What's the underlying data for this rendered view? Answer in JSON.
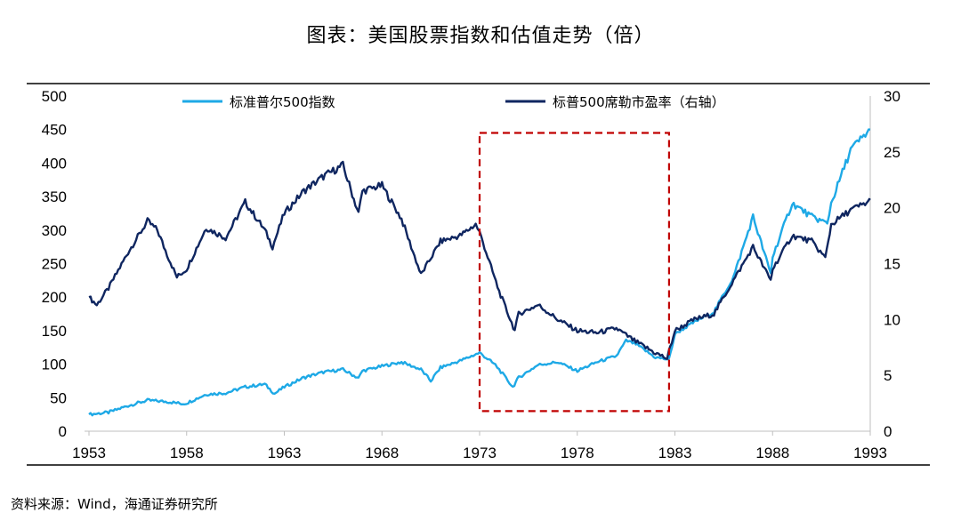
{
  "title": "图表：美国股票指数和估值走势（倍）",
  "source": "资料来源：Wind，海通证券研究所",
  "colors": {
    "sp500": "#1EA9E6",
    "pe": "#0F2660",
    "highlight": "#C00000"
  },
  "chart_data": {
    "type": "line",
    "x_ticks": [
      "1953",
      "1958",
      "1963",
      "1968",
      "1973",
      "1978",
      "1983",
      "1988",
      "1993"
    ],
    "xlim": [
      1953,
      1993
    ],
    "y_left_ticks": [
      "0",
      "50",
      "100",
      "150",
      "200",
      "250",
      "300",
      "350",
      "400",
      "450",
      "500"
    ],
    "y_left_lim": [
      0,
      500
    ],
    "y_right_ticks": [
      "0",
      "5",
      "10",
      "15",
      "20",
      "25",
      "30"
    ],
    "y_right_lim": [
      0,
      30
    ],
    "legend_position": "top",
    "highlight_range": {
      "x": [
        1973,
        1982.7
      ],
      "y_left": [
        30,
        445
      ]
    },
    "series": [
      {
        "name": "标准普尔500指数",
        "axis": "left",
        "points": [
          [
            1953,
            25
          ],
          [
            1954,
            28
          ],
          [
            1955,
            38
          ],
          [
            1956,
            46
          ],
          [
            1957,
            44
          ],
          [
            1957.8,
            41
          ],
          [
            1958,
            42
          ],
          [
            1959,
            55
          ],
          [
            1960,
            57
          ],
          [
            1961,
            66
          ],
          [
            1962,
            70
          ],
          [
            1962.5,
            56
          ],
          [
            1963,
            66
          ],
          [
            1964,
            80
          ],
          [
            1965,
            88
          ],
          [
            1966,
            92
          ],
          [
            1966.8,
            79
          ],
          [
            1967,
            90
          ],
          [
            1968,
            97
          ],
          [
            1969,
            103
          ],
          [
            1970,
            92
          ],
          [
            1970.5,
            75
          ],
          [
            1971,
            95
          ],
          [
            1972,
            105
          ],
          [
            1973,
            117
          ],
          [
            1973.8,
            99
          ],
          [
            1974,
            92
          ],
          [
            1974.7,
            66
          ],
          [
            1975,
            80
          ],
          [
            1976,
            99
          ],
          [
            1977,
            103
          ],
          [
            1978,
            90
          ],
          [
            1979,
            103
          ],
          [
            1980,
            112
          ],
          [
            1980.5,
            135
          ],
          [
            1981,
            130
          ],
          [
            1982,
            110
          ],
          [
            1982.7,
            107
          ],
          [
            1983,
            145
          ],
          [
            1984,
            163
          ],
          [
            1985,
            178
          ],
          [
            1986,
            230
          ],
          [
            1987,
            320
          ],
          [
            1987.9,
            235
          ],
          [
            1988,
            260
          ],
          [
            1989,
            340
          ],
          [
            1990,
            320
          ],
          [
            1990.8,
            310
          ],
          [
            1991,
            340
          ],
          [
            1992,
            420
          ],
          [
            1993,
            450
          ]
        ]
      },
      {
        "name": "标普500席勒市盈率（右轴）",
        "axis": "right",
        "points": [
          [
            1953,
            12
          ],
          [
            1953.4,
            11.3
          ],
          [
            1954,
            12.8
          ],
          [
            1955,
            16
          ],
          [
            1956,
            18.8
          ],
          [
            1956.5,
            18
          ],
          [
            1957,
            15.8
          ],
          [
            1957.5,
            13.8
          ],
          [
            1958,
            14.5
          ],
          [
            1959,
            18.2
          ],
          [
            1960,
            17.3
          ],
          [
            1961,
            20.5
          ],
          [
            1962,
            18
          ],
          [
            1962.4,
            16.5
          ],
          [
            1963,
            19.5
          ],
          [
            1964,
            21.5
          ],
          [
            1965,
            22.8
          ],
          [
            1966,
            23.8
          ],
          [
            1966.8,
            19.5
          ],
          [
            1967,
            21.5
          ],
          [
            1968,
            22
          ],
          [
            1969,
            19
          ],
          [
            1970,
            14
          ],
          [
            1971,
            17
          ],
          [
            1972,
            17.5
          ],
          [
            1972.8,
            18.5
          ],
          [
            1973,
            17.8
          ],
          [
            1974,
            12.5
          ],
          [
            1974.8,
            9
          ],
          [
            1975,
            10.5
          ],
          [
            1976,
            11.3
          ],
          [
            1977,
            10
          ],
          [
            1978,
            9
          ],
          [
            1979,
            8.8
          ],
          [
            1980,
            9.2
          ],
          [
            1981,
            8
          ],
          [
            1982,
            7
          ],
          [
            1982.6,
            6.5
          ],
          [
            1983,
            9
          ],
          [
            1984,
            10
          ],
          [
            1985,
            10.5
          ],
          [
            1986,
            13.5
          ],
          [
            1987,
            16.5
          ],
          [
            1987.9,
            13.5
          ],
          [
            1988,
            14.5
          ],
          [
            1989,
            17.5
          ],
          [
            1990,
            17
          ],
          [
            1990.7,
            15.5
          ],
          [
            1991,
            18.5
          ],
          [
            1992,
            19.8
          ],
          [
            1992.9,
            20.5
          ],
          [
            1993,
            20.7
          ]
        ]
      }
    ]
  }
}
